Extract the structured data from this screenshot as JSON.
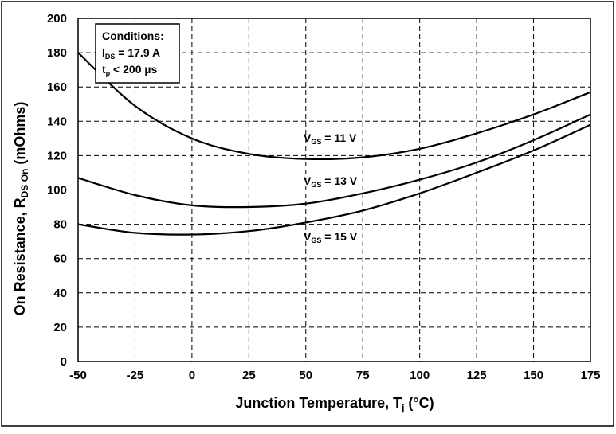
{
  "chart_data": {
    "type": "line",
    "xlabel": {
      "main": "Junction Temperature, T",
      "sub": "j",
      "tail": " (°C)"
    },
    "ylabel": {
      "main": "On Resistance, R",
      "sub": "DS On",
      "tail": " (mOhms)"
    },
    "xlim": [
      -50,
      175
    ],
    "ylim": [
      0,
      200
    ],
    "xticks": [
      -50,
      -25,
      0,
      25,
      50,
      75,
      100,
      125,
      150,
      175
    ],
    "yticks": [
      0,
      20,
      40,
      60,
      80,
      100,
      120,
      140,
      160,
      180,
      200
    ],
    "grid": true,
    "conditions": {
      "title": "Conditions:",
      "line1": {
        "main": "I",
        "sub": "DS",
        "tail": " = 17.9 A"
      },
      "line2": {
        "main": "t",
        "sub": "p",
        "tail": " < 200 µs"
      }
    },
    "series": [
      {
        "label": {
          "main": "V",
          "sub": "GS",
          "tail": " = 11 V"
        },
        "x": [
          -50,
          -25,
          0,
          25,
          50,
          75,
          100,
          125,
          150,
          175
        ],
        "values": [
          180,
          149,
          130,
          121,
          118,
          119,
          124,
          133,
          144,
          157
        ]
      },
      {
        "label": {
          "main": "V",
          "sub": "GS",
          "tail": " = 13 V"
        },
        "x": [
          -50,
          -25,
          0,
          25,
          50,
          75,
          100,
          125,
          150,
          175
        ],
        "values": [
          107,
          97,
          91,
          90,
          92,
          98,
          106,
          116,
          129,
          144
        ]
      },
      {
        "label": {
          "main": "V",
          "sub": "GS",
          "tail": " = 15 V"
        },
        "x": [
          -50,
          -25,
          0,
          25,
          50,
          75,
          100,
          125,
          150,
          175
        ],
        "values": [
          80,
          75,
          74,
          76,
          81,
          88,
          98,
          110,
          123,
          138
        ]
      }
    ]
  }
}
